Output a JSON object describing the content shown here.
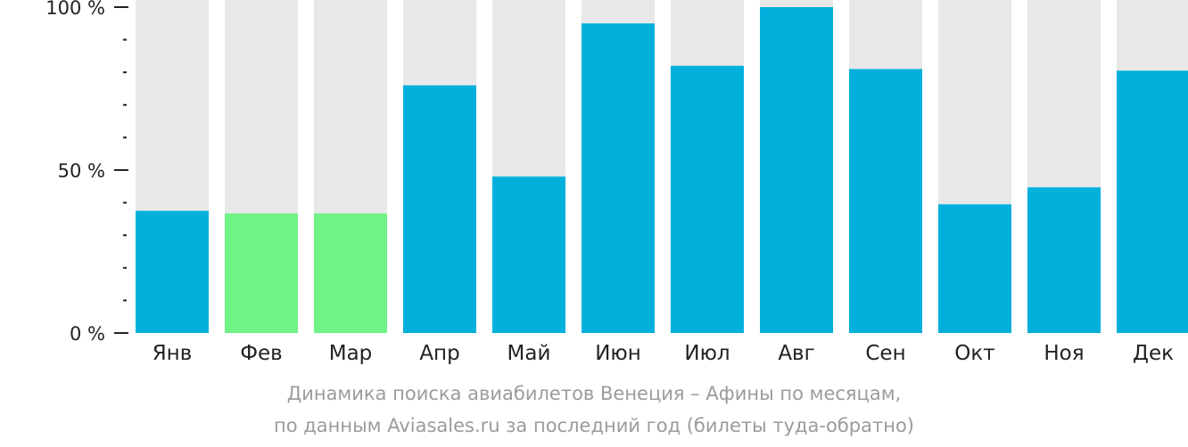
{
  "chart_data": {
    "type": "bar",
    "categories": [
      "Янв",
      "Фев",
      "Мар",
      "Апр",
      "Май",
      "Июн",
      "Июл",
      "Авг",
      "Сен",
      "Окт",
      "Ноя",
      "Дек"
    ],
    "values": [
      37.5,
      36.7,
      36.7,
      76,
      48,
      95,
      82,
      100,
      81,
      39.5,
      44.7,
      80.5
    ],
    "highlighted": [
      "Фев",
      "Мар"
    ],
    "ylim": [
      0,
      100
    ],
    "yticks": [
      {
        "value": 0,
        "label": "0 %"
      },
      {
        "value": 50,
        "label": "50 %"
      },
      {
        "value": 100,
        "label": "100 %"
      }
    ],
    "minor_tick_step": 10,
    "colors": {
      "bar": "#02b0dc",
      "highlight": "#6ff286",
      "background_bar": "#e8e8e8",
      "axis": "#222222"
    },
    "caption": [
      "Динамика поиска авиабилетов Венеция – Афины по месяцам,",
      "по данным Aviasales.ru за последний год (билеты туда-обратно)"
    ]
  }
}
